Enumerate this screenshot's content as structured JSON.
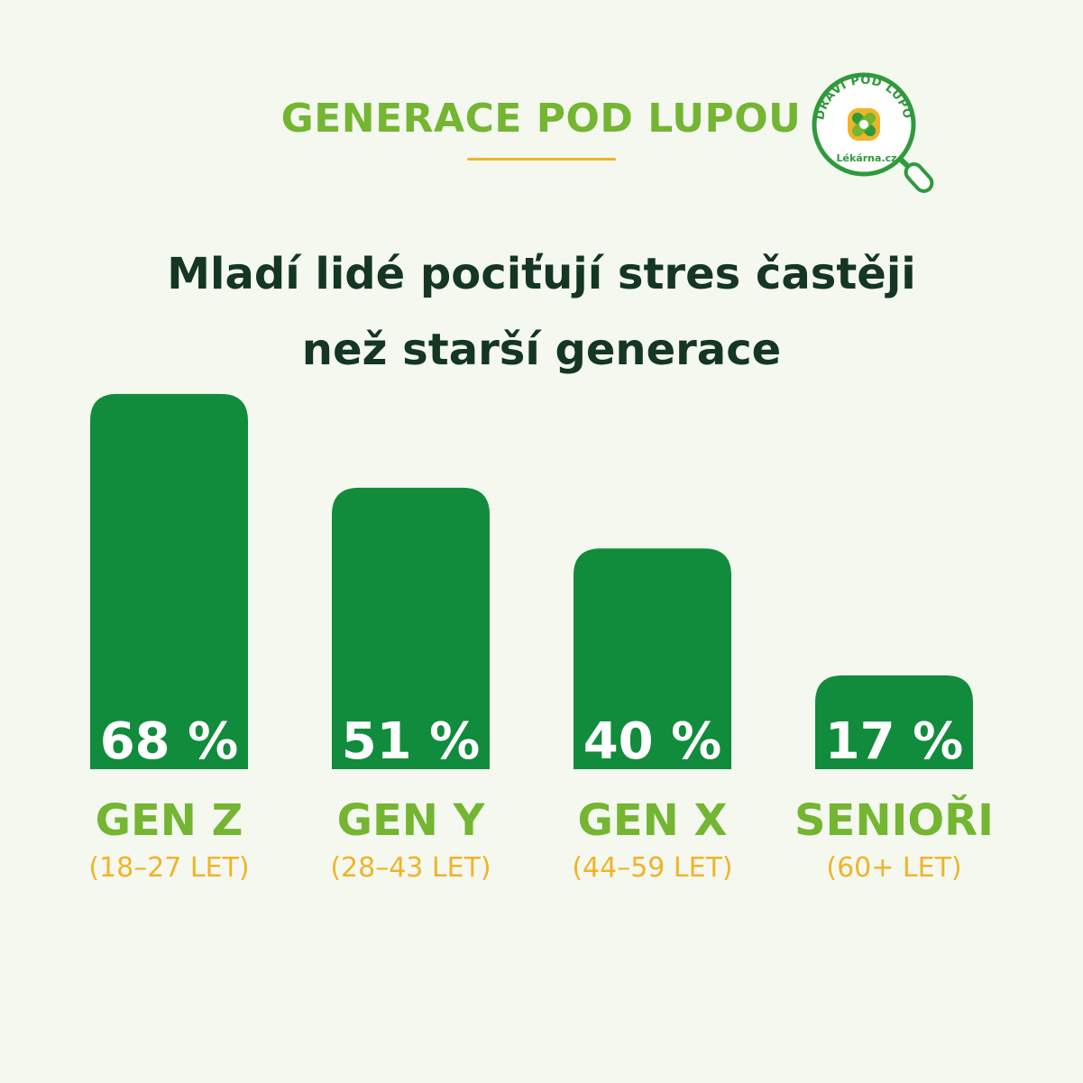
{
  "header": {
    "title": "GENERACE POD LUPOU"
  },
  "logo": {
    "ring_text": "ZDRAVÍ POD LUPOU",
    "brand": "Lékárna.cz",
    "icon": "magnifier-cross-icon"
  },
  "headline": {
    "line1": "Mladí lidé pociťují stres častěji",
    "line2": "než starší generace"
  },
  "colors": {
    "background": "#f4f8ef",
    "bar": "#118c3c",
    "category_label": "#74b532",
    "subtitle": "#f0b429",
    "headline": "#143623",
    "value_label": "#ffffff"
  },
  "chart_data": {
    "type": "bar",
    "categories": [
      "GEN Z",
      "GEN Y",
      "GEN X",
      "SENIOŘI"
    ],
    "category_subtitles": [
      "(18–27 LET)",
      "(28–43 LET)",
      "(44–59 LET)",
      "(60+ LET)"
    ],
    "values": [
      68,
      51,
      40,
      17
    ],
    "value_labels": [
      "68 %",
      "51 %",
      "40 %",
      "17 %"
    ],
    "unit": "%",
    "ylim": [
      0,
      100
    ],
    "grid": false
  }
}
